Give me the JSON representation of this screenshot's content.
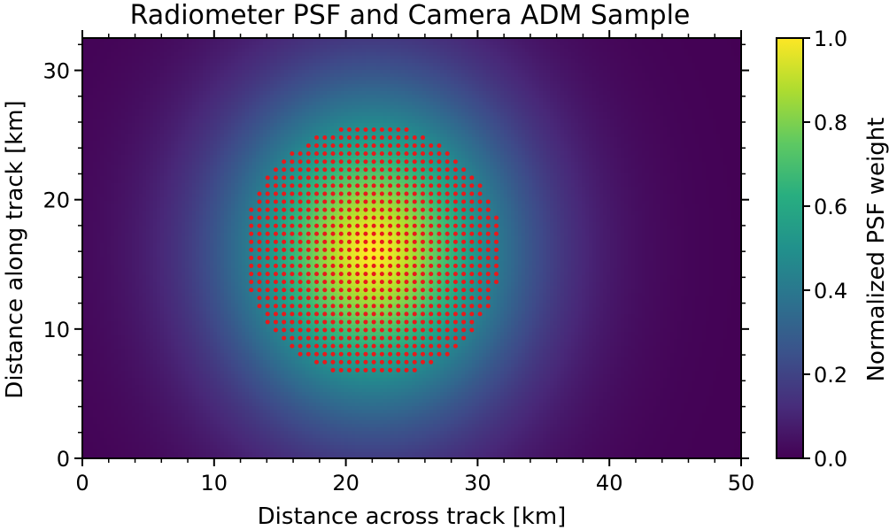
{
  "chart_data": {
    "type": "heatmap",
    "title": "Radiometer PSF and Camera ADM Sample",
    "xlabel": "Distance across track [km]",
    "ylabel": "Distance along track [km]",
    "xlim": [
      0,
      50
    ],
    "ylim": [
      0,
      32.5
    ],
    "xticks": [
      "0",
      "10",
      "20",
      "30",
      "40",
      "50"
    ],
    "yticks": [
      "0",
      "10",
      "20",
      "30"
    ],
    "colormap": "viridis",
    "heatmap": {
      "description": "Normalized radiometer point spread function weight over the footprint",
      "peak_center": [
        22,
        16
      ],
      "peak_value": 1.0,
      "edge_value": 0.0
    },
    "colorbar": {
      "label": "Normalized PSF weight",
      "range": [
        0,
        1
      ],
      "ticks": [
        "0.0",
        "0.2",
        "0.4",
        "0.6",
        "0.8",
        "1.0"
      ]
    },
    "sample_points": {
      "color": "#e8191b",
      "shape": "circle",
      "center": [
        22,
        16
      ],
      "radius_km": 9.8,
      "spacing_x_km": 0.62,
      "spacing_y_km": 0.62
    }
  }
}
